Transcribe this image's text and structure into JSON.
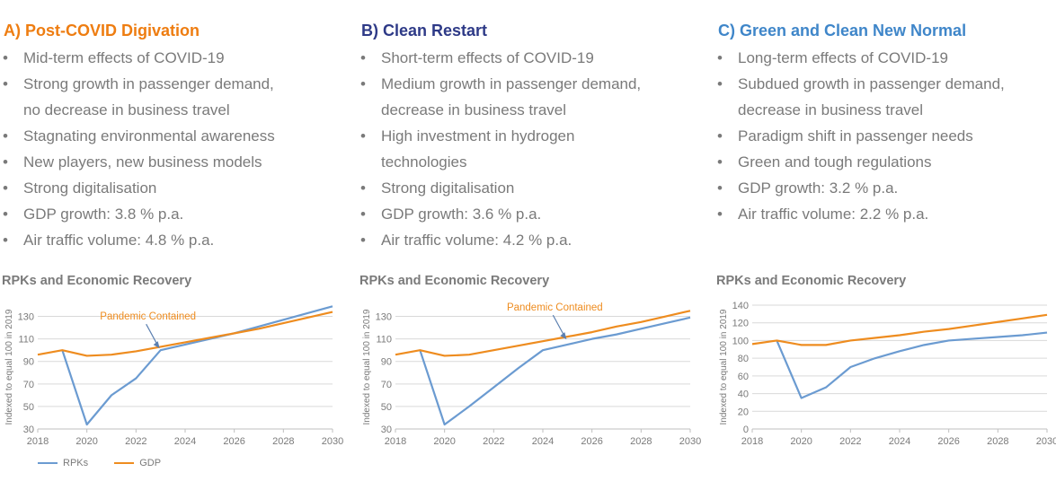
{
  "colors": {
    "rpk": "#6b9bd1",
    "gdp": "#ee8c1f",
    "text": "#7a7a7a",
    "grid": "#d9d9d9"
  },
  "panels": [
    {
      "title": "A) Post-COVID Digivation",
      "title_color": "#ee7d11",
      "bullets": [
        "Mid-term effects of COVID-19",
        "Strong growth in passenger demand,",
        "no decrease in business travel",
        "Stagnating environmental awareness",
        "New players, new business models",
        "Strong digitalisation",
        "GDP growth: 3.8 % p.a.",
        "Air traffic volume: 4.8 % p.a."
      ],
      "bullet_dots": [
        true,
        true,
        false,
        true,
        true,
        true,
        true,
        true
      ]
    },
    {
      "title": "B) Clean Restart",
      "title_color": "#2e3a87",
      "bullets": [
        "Short-term effects of COVID-19",
        "Medium growth in passenger demand,",
        "decrease in business travel",
        "High investment in hydrogen",
        "technologies",
        "Strong digitalisation",
        "GDP growth: 3.6 % p.a.",
        "Air traffic volume: 4.2 % p.a."
      ],
      "bullet_dots": [
        true,
        true,
        false,
        true,
        false,
        true,
        true,
        true
      ]
    },
    {
      "title": "C) Green and Clean New Normal",
      "title_color": "#3f86c9",
      "bullets": [
        "Long-term effects of COVID-19",
        "Subdued growth in passenger demand,",
        "decrease in business travel",
        "Paradigm shift in passenger needs",
        "Green and tough regulations",
        "GDP growth: 3.2 % p.a.",
        "Air traffic volume: 2.2 % p.a."
      ],
      "bullet_dots": [
        true,
        true,
        false,
        true,
        true,
        true,
        true
      ]
    }
  ],
  "legend": {
    "rpk": "RPKs",
    "gdp": "GDP"
  },
  "chart_data": [
    {
      "type": "line",
      "title": "RPKs and Economic Recovery",
      "ylabel": "Indexed to equal 100 in 2019",
      "xlim": [
        2018,
        2030
      ],
      "ylim": [
        30,
        140
      ],
      "xticks": [
        2018,
        2020,
        2022,
        2024,
        2026,
        2028,
        2030
      ],
      "yticks": [
        30,
        50,
        70,
        90,
        110,
        130
      ],
      "grid": "horizontal",
      "annotation": {
        "text": "Pandemic Contained",
        "x": 2023,
        "y": 100
      },
      "series": [
        {
          "name": "RPKs",
          "x": [
            2019,
            2020,
            2021,
            2022,
            2023,
            2024,
            2025,
            2026,
            2027,
            2028,
            2029,
            2030
          ],
          "y": [
            100,
            34,
            60,
            75,
            100,
            105,
            110,
            115,
            121,
            127,
            133,
            139
          ]
        },
        {
          "name": "GDP",
          "x": [
            2018,
            2019,
            2020,
            2021,
            2022,
            2023,
            2024,
            2025,
            2026,
            2027,
            2028,
            2029,
            2030
          ],
          "y": [
            96,
            100,
            95,
            96,
            99,
            103,
            107,
            111,
            115,
            119,
            124,
            129,
            134
          ]
        }
      ]
    },
    {
      "type": "line",
      "title": "RPKs and Economic Recovery",
      "ylabel": "Indexed to equal 100 in 2019",
      "xlim": [
        2018,
        2030
      ],
      "ylim": [
        30,
        140
      ],
      "xticks": [
        2018,
        2020,
        2022,
        2024,
        2026,
        2028,
        2030
      ],
      "yticks": [
        30,
        50,
        70,
        90,
        110,
        130
      ],
      "grid": "horizontal",
      "annotation": {
        "text": "Pandemic Contained",
        "x": 2025,
        "y": 108
      },
      "series": [
        {
          "name": "RPKs",
          "x": [
            2019,
            2020,
            2021,
            2022,
            2023,
            2024,
            2025,
            2026,
            2027,
            2028,
            2029,
            2030
          ],
          "y": [
            100,
            34,
            50,
            67,
            84,
            100,
            105,
            110,
            114,
            119,
            124,
            129
          ]
        },
        {
          "name": "GDP",
          "x": [
            2018,
            2019,
            2020,
            2021,
            2022,
            2023,
            2024,
            2025,
            2026,
            2027,
            2028,
            2029,
            2030
          ],
          "y": [
            96,
            100,
            95,
            96,
            100,
            104,
            108,
            112,
            116,
            121,
            125,
            130,
            135
          ]
        }
      ]
    },
    {
      "type": "line",
      "title": "RPKs and Economic Recovery",
      "ylabel": "Indexed to equal 100 in 2019",
      "xlim": [
        2018,
        2030
      ],
      "ylim": [
        0,
        140
      ],
      "xticks": [
        2018,
        2020,
        2022,
        2024,
        2026,
        2028,
        2030
      ],
      "yticks": [
        0,
        20,
        40,
        60,
        80,
        100,
        120,
        140
      ],
      "grid": "horizontal",
      "annotation": null,
      "series": [
        {
          "name": "RPKs",
          "x": [
            2019,
            2020,
            2021,
            2022,
            2023,
            2024,
            2025,
            2026,
            2027,
            2028,
            2029,
            2030
          ],
          "y": [
            100,
            35,
            47,
            70,
            80,
            88,
            95,
            100,
            102,
            104,
            106,
            109
          ]
        },
        {
          "name": "GDP",
          "x": [
            2018,
            2019,
            2020,
            2021,
            2022,
            2023,
            2024,
            2025,
            2026,
            2027,
            2028,
            2029,
            2030
          ],
          "y": [
            96,
            100,
            95,
            95,
            100,
            103,
            106,
            110,
            113,
            117,
            121,
            125,
            129
          ]
        }
      ]
    }
  ]
}
